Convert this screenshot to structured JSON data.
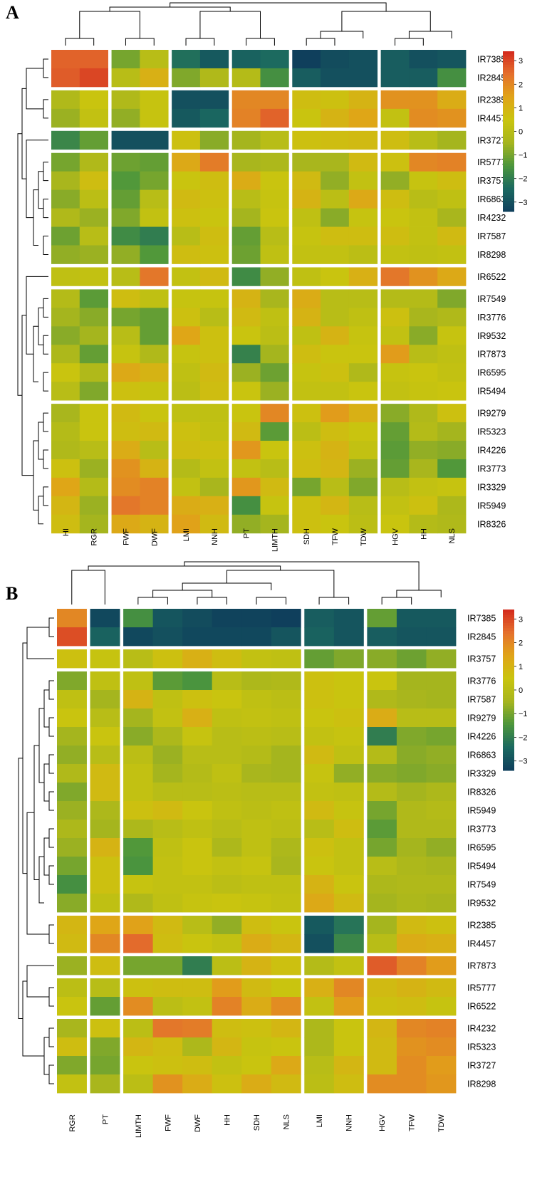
{
  "legend": {
    "ticks": [
      3,
      2,
      1,
      0,
      -1,
      -2,
      -3
    ],
    "tick_labels": [
      "3",
      "2",
      "1",
      "0",
      "−1",
      "−2",
      "−3"
    ],
    "min": -3.4,
    "max": 3.4,
    "color_stops": [
      "#0f3f5c",
      "#1b6960",
      "#4c963c",
      "#a6b51e",
      "#c9c40f",
      "#e0a418",
      "#e4702d",
      "#d3291d"
    ]
  },
  "chart_data": [
    {
      "type": "heatmap",
      "panel_label": "A",
      "columns": [
        "HI",
        "RGR",
        "FWF",
        "DWF",
        "LMI",
        "NNH",
        "PT",
        "LIMTH",
        "SDH",
        "TFW",
        "TDW",
        "HGV",
        "HH",
        "NLS"
      ],
      "rows": [
        "IR7385",
        "IR2845",
        "IR2385",
        "IR4457",
        "IR3727",
        "IR5777",
        "IR3757",
        "IR6863",
        "IR4232",
        "IR7587",
        "IR8298",
        "IR6522",
        "IR7549",
        "IR3776",
        "IR9532",
        "IR7873",
        "IR6595",
        "IR5494",
        "IR9279",
        "IR5323",
        "IR4226",
        "IR3773",
        "IR3329",
        "IR5949",
        "IR8326"
      ],
      "values": [
        [
          2.6,
          2.6,
          -1.0,
          0.0,
          -2.3,
          -2.8,
          -2.6,
          -2.4,
          -3.4,
          -3.1,
          -3.0,
          -2.7,
          -3.0,
          -2.9
        ],
        [
          2.7,
          3.0,
          0.0,
          1.1,
          -0.9,
          -0.2,
          -0.1,
          -1.6,
          -2.7,
          -3.0,
          -3.0,
          -2.7,
          -2.7,
          -1.6
        ],
        [
          -0.2,
          0.5,
          -0.2,
          0.4,
          -3.0,
          -3.0,
          2.0,
          2.0,
          0.7,
          0.6,
          1.0,
          1.8,
          1.8,
          1.2
        ],
        [
          -0.6,
          0.3,
          -0.7,
          0.4,
          -2.8,
          -2.5,
          2.1,
          2.6,
          0.5,
          1.0,
          1.4,
          0.3,
          1.9,
          1.8
        ],
        [
          -1.8,
          -1.2,
          -3.0,
          -3.0,
          0.6,
          -0.8,
          -0.5,
          0.0,
          0.6,
          0.7,
          0.8,
          0.7,
          0.0,
          -0.5
        ],
        [
          -1.0,
          -0.2,
          -1.1,
          -1.2,
          1.3,
          2.2,
          -0.4,
          -0.3,
          -0.4,
          -0.4,
          0.8,
          0.6,
          2.0,
          2.1
        ],
        [
          -0.4,
          0.7,
          -1.4,
          -1.0,
          0.5,
          0.7,
          1.2,
          0.5,
          0.8,
          -0.7,
          0.3,
          -0.7,
          0.4,
          0.7
        ],
        [
          -0.8,
          0.1,
          -1.2,
          0.0,
          0.8,
          0.6,
          0.0,
          0.4,
          1.0,
          0.1,
          1.3,
          0.7,
          0.0,
          0.2
        ],
        [
          -0.2,
          -0.6,
          -0.9,
          0.3,
          0.6,
          0.5,
          -0.5,
          0.5,
          0.2,
          -0.8,
          0.4,
          0.5,
          0.3,
          -0.4
        ],
        [
          -1.1,
          0.0,
          -1.7,
          -2.0,
          0.0,
          0.7,
          -1.2,
          0.0,
          0.4,
          0.7,
          0.7,
          0.7,
          0.3,
          0.8
        ],
        [
          -0.7,
          -0.6,
          -0.7,
          -1.4,
          0.7,
          0.6,
          -1.1,
          0.2,
          0.3,
          0.3,
          0.1,
          0.3,
          0.2,
          0.3
        ],
        [
          0.2,
          0.3,
          0.0,
          2.3,
          0.3,
          0.8,
          -1.7,
          -0.7,
          0.2,
          0.5,
          1.1,
          2.3,
          1.8,
          1.3
        ],
        [
          -0.1,
          -1.3,
          0.7,
          0.2,
          0.4,
          0.4,
          1.0,
          -0.4,
          1.2,
          0.0,
          0.0,
          -0.1,
          -0.1,
          -0.9
        ],
        [
          -0.5,
          -0.8,
          -1.0,
          -1.2,
          0.6,
          0.0,
          0.8,
          0.2,
          1.0,
          0.0,
          0.2,
          0.6,
          -0.4,
          -0.2
        ],
        [
          -0.8,
          -0.5,
          0.0,
          -1.2,
          1.4,
          0.6,
          0.5,
          0.1,
          0.2,
          1.0,
          0.4,
          0.3,
          -0.8,
          0.4
        ],
        [
          -0.3,
          -1.2,
          0.4,
          -0.2,
          0.4,
          0.6,
          -1.9,
          -0.5,
          0.7,
          0.5,
          0.5,
          1.6,
          0.0,
          0.2
        ],
        [
          0.5,
          -0.2,
          1.3,
          1.0,
          0.2,
          0.8,
          -0.6,
          -1.1,
          0.4,
          0.6,
          -0.2,
          0.4,
          0.5,
          0.3
        ],
        [
          0.0,
          -0.9,
          0.6,
          0.4,
          0.1,
          0.7,
          0.5,
          -0.6,
          0.3,
          0.3,
          0.5,
          0.3,
          0.4,
          0.5
        ],
        [
          -0.4,
          0.5,
          0.8,
          0.5,
          0.2,
          0.2,
          0.5,
          2.0,
          0.6,
          1.6,
          1.1,
          -0.8,
          -0.2,
          0.6
        ],
        [
          -0.1,
          0.5,
          0.7,
          0.8,
          0.6,
          0.3,
          0.8,
          -1.3,
          0.1,
          0.7,
          0.5,
          -1.2,
          -0.1,
          -0.5
        ],
        [
          -0.2,
          0.0,
          1.2,
          0.0,
          0.7,
          0.6,
          1.7,
          0.5,
          0.6,
          1.0,
          0.3,
          -1.3,
          -0.7,
          -0.8
        ],
        [
          0.6,
          -0.6,
          1.8,
          1.0,
          -0.1,
          0.3,
          0.3,
          0.0,
          0.7,
          0.9,
          -0.6,
          -1.2,
          -0.4,
          -1.4
        ],
        [
          1.4,
          -0.1,
          1.9,
          2.1,
          0.3,
          -0.4,
          1.7,
          0.8,
          -1.0,
          0.0,
          -0.9,
          0.0,
          0.3,
          0.4
        ],
        [
          0.9,
          -0.6,
          2.3,
          2.1,
          1.2,
          1.1,
          -1.6,
          0.4,
          0.6,
          0.9,
          0.0,
          0.3,
          0.6,
          -0.3
        ],
        [
          0.7,
          -0.5,
          1.3,
          1.0,
          1.5,
          0.8,
          -0.7,
          -0.5,
          0.6,
          0.5,
          0.1,
          0.5,
          -0.1,
          -0.2
        ]
      ]
    },
    {
      "type": "heatmap",
      "panel_label": "B",
      "columns": [
        "RGR",
        "PT",
        "LIMTH",
        "FWF",
        "DWF",
        "HH",
        "SDH",
        "NLS",
        "LMI",
        "NNH",
        "HGV",
        "TFW",
        "TDW"
      ],
      "rows": [
        "IR7385",
        "IR2845",
        "IR3757",
        "IR3776",
        "IR7587",
        "IR9279",
        "IR4226",
        "IR6863",
        "IR3329",
        "IR8326",
        "IR5949",
        "IR3773",
        "IR6595",
        "IR5494",
        "IR7549",
        "IR9532",
        "IR2385",
        "IR4457",
        "IR7873",
        "IR5777",
        "IR6522",
        "IR4232",
        "IR5323",
        "IR3727",
        "IR8298"
      ],
      "values": [
        [
          2.0,
          -3.2,
          -1.6,
          -2.9,
          -3.1,
          -3.3,
          -3.3,
          -3.4,
          -2.7,
          -2.9,
          -1.2,
          -2.8,
          -2.8
        ],
        [
          2.9,
          -2.6,
          -3.2,
          -3.0,
          -3.2,
          -3.2,
          -3.2,
          -2.9,
          -2.6,
          -2.9,
          -2.7,
          -2.9,
          -2.9
        ],
        [
          0.6,
          0.4,
          0.0,
          0.6,
          1.1,
          0.7,
          0.3,
          0.2,
          -1.2,
          -0.9,
          -0.8,
          -1.1,
          -0.7
        ],
        [
          -0.9,
          0.2,
          0.2,
          -1.3,
          -1.5,
          0.0,
          -0.3,
          -0.2,
          0.6,
          0.5,
          0.5,
          -0.5,
          -0.5
        ],
        [
          0.2,
          -0.5,
          1.0,
          0.2,
          0.6,
          0.5,
          0.2,
          0.1,
          0.6,
          0.5,
          -0.2,
          -0.4,
          -0.5
        ],
        [
          0.5,
          0.0,
          -0.5,
          0.3,
          1.1,
          0.2,
          0.3,
          0.2,
          0.5,
          0.6,
          1.2,
          0.0,
          0.0
        ],
        [
          -0.5,
          0.5,
          -0.8,
          -0.3,
          0.4,
          0.0,
          0.1,
          0.0,
          0.3,
          0.4,
          -2.0,
          -0.9,
          -1.0
        ],
        [
          -0.7,
          0.0,
          0.1,
          -0.6,
          0.0,
          0.0,
          -0.1,
          -0.5,
          0.8,
          0.2,
          -0.1,
          -0.8,
          -0.7
        ],
        [
          -0.2,
          0.8,
          0.3,
          -0.5,
          -0.1,
          0.2,
          -0.4,
          -0.5,
          0.4,
          -0.7,
          -0.8,
          -0.9,
          -0.8
        ],
        [
          -0.9,
          0.8,
          0.3,
          0.0,
          0.0,
          0.1,
          0.0,
          0.0,
          0.3,
          0.2,
          -0.1,
          -0.5,
          -0.3
        ],
        [
          -0.6,
          -0.3,
          0.6,
          0.8,
          0.5,
          0.2,
          0.1,
          0.2,
          0.8,
          0.4,
          -1.0,
          -0.2,
          -0.1
        ],
        [
          -0.3,
          -0.5,
          -0.3,
          0.0,
          0.2,
          0.0,
          0.2,
          0.1,
          0.0,
          0.7,
          -1.3,
          -0.2,
          -0.2
        ],
        [
          -0.6,
          1.0,
          -1.4,
          0.2,
          0.5,
          -0.3,
          0.2,
          -0.3,
          0.6,
          0.3,
          -1.0,
          -0.5,
          -0.7
        ],
        [
          -1.0,
          0.6,
          -1.5,
          0.3,
          0.5,
          0.3,
          0.4,
          -0.4,
          0.5,
          0.3,
          0.0,
          -0.3,
          -0.4
        ],
        [
          -1.6,
          0.6,
          0.4,
          0.3,
          0.3,
          0.1,
          0.2,
          0.2,
          1.0,
          0.5,
          -0.3,
          -0.2,
          -0.2
        ],
        [
          -0.8,
          0.2,
          -0.2,
          0.2,
          0.4,
          0.5,
          0.4,
          0.3,
          1.3,
          0.8,
          -0.5,
          -0.3,
          -0.4
        ],
        [
          0.9,
          1.4,
          1.5,
          0.8,
          0.0,
          -0.7,
          0.7,
          0.5,
          -2.8,
          -2.2,
          -0.5,
          0.8,
          0.6
        ],
        [
          0.8,
          2.0,
          2.5,
          0.7,
          0.5,
          0.3,
          1.2,
          0.9,
          -3.0,
          -1.8,
          0.0,
          1.2,
          1.1
        ],
        [
          -0.6,
          0.7,
          -1.0,
          -1.0,
          -2.0,
          0.1,
          1.0,
          0.6,
          -0.1,
          0.3,
          2.7,
          2.1,
          1.6
        ],
        [
          0.1,
          0.0,
          0.6,
          0.7,
          0.7,
          1.6,
          0.8,
          0.5,
          1.1,
          2.0,
          0.8,
          1.0,
          0.8
        ],
        [
          0.5,
          -1.2,
          1.9,
          0.1,
          0.3,
          2.1,
          1.2,
          1.9,
          0.3,
          1.6,
          0.6,
          0.7,
          0.4
        ],
        [
          -0.4,
          0.6,
          0.1,
          2.3,
          2.2,
          0.7,
          0.6,
          0.9,
          -0.3,
          0.5,
          0.9,
          2.0,
          2.1
        ],
        [
          0.7,
          -0.9,
          0.9,
          0.7,
          -0.3,
          0.9,
          0.4,
          0.5,
          -0.3,
          0.5,
          0.8,
          1.8,
          1.9
        ],
        [
          -0.9,
          -1.0,
          0.5,
          0.6,
          0.7,
          0.3,
          0.5,
          1.3,
          0.0,
          0.9,
          0.8,
          1.9,
          1.6
        ],
        [
          0.3,
          -0.4,
          0.1,
          1.8,
          1.2,
          0.6,
          1.2,
          0.8,
          0.1,
          0.7,
          1.9,
          1.9,
          1.7
        ]
      ]
    }
  ]
}
